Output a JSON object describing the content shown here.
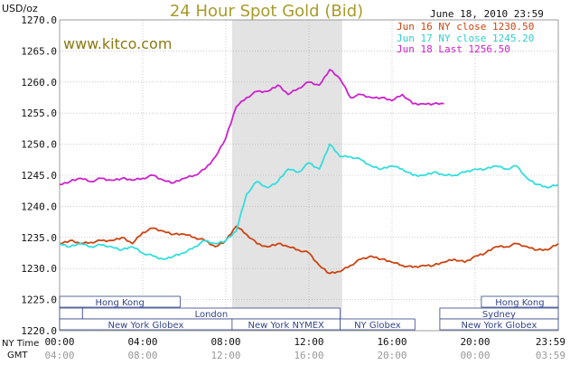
{
  "header": {
    "unit_label": "USD/oz",
    "title": "24 Hour Spot Gold (Bid)",
    "timestamp": "June 18, 2010 23:59",
    "site": "www.kitco.com"
  },
  "colors": {
    "background": "#ffffff",
    "title": "#a89a2a",
    "site": "#8a7a10",
    "jun16": "#cc4411",
    "jun17": "#33dddd",
    "jun18": "#cc22cc",
    "shade": "#e3e3e3",
    "grid": "#aaaaaa",
    "session_box": "#334488",
    "axis_text": "#111111",
    "gmt_text": "#999999"
  },
  "chart_data": {
    "type": "line",
    "title": "24 Hour Spot Gold (Bid)",
    "ylabel": "USD/oz",
    "ylim": [
      1220,
      1270
    ],
    "yticks": [
      "1220.0",
      "1225.0",
      "1230.0",
      "1235.0",
      "1240.0",
      "1245.0",
      "1250.0",
      "1255.0",
      "1260.0",
      "1265.0",
      "1270.0"
    ],
    "x_hours": [
      0,
      24
    ],
    "xticks_ny": [
      "00:00",
      "04:00",
      "08:00",
      "12:00",
      "16:00",
      "20:00",
      "23:59"
    ],
    "xticks_gmt": [
      "04:00",
      "08:00",
      "12:00",
      "16:00",
      "20:00",
      "00:00",
      "03:59"
    ],
    "xrow_labels": [
      "NY Time",
      "GMT"
    ],
    "shaded_range_hours": [
      8.3,
      13.6
    ],
    "grid": true,
    "legend_position": "top-right",
    "legend": [
      {
        "text": "Jun 16 NY close 1230.50",
        "series": "jun16"
      },
      {
        "text": "Jun 17 NY close 1245.20",
        "series": "jun17"
      },
      {
        "text": "Jun 18 Last 1256.50",
        "series": "jun18"
      }
    ],
    "series": [
      {
        "key": "jun16",
        "x": [
          0,
          0.5,
          1,
          1.5,
          2,
          2.5,
          3,
          3.5,
          4,
          4.5,
          5,
          5.5,
          6,
          6.5,
          7,
          7.5,
          8,
          8.5,
          9,
          9.5,
          10,
          10.5,
          11,
          11.5,
          12,
          12.5,
          13,
          13.5,
          14,
          14.5,
          15,
          15.5,
          16,
          16.5,
          17,
          17.5,
          18,
          18.5,
          19,
          19.5,
          20,
          20.5,
          21,
          21.5,
          22,
          22.5,
          23,
          23.5,
          24
        ],
        "values": [
          1234,
          1234.5,
          1234,
          1234.2,
          1234.5,
          1234.5,
          1235,
          1234,
          1235.8,
          1236.5,
          1236,
          1235.5,
          1235.5,
          1235,
          1234.5,
          1233.5,
          1234.5,
          1236.8,
          1235.5,
          1234,
          1233.5,
          1234,
          1233.5,
          1233,
          1232.5,
          1230.5,
          1229.2,
          1229.5,
          1230.5,
          1231.5,
          1232,
          1231.5,
          1231,
          1230.5,
          1230.2,
          1230.5,
          1230.5,
          1231,
          1231.5,
          1231,
          1232,
          1232.5,
          1233.5,
          1233.5,
          1234,
          1233.5,
          1233,
          1233,
          1234
        ]
      },
      {
        "key": "jun17",
        "x": [
          0,
          0.5,
          1,
          1.5,
          2,
          2.5,
          3,
          3.5,
          4,
          4.5,
          5,
          5.5,
          6,
          6.5,
          7,
          7.5,
          8,
          8.5,
          9,
          9.5,
          10,
          10.5,
          11,
          11.5,
          12,
          12.5,
          13,
          13.5,
          14,
          14.5,
          15,
          15.5,
          16,
          16.5,
          17,
          17.5,
          18,
          18.5,
          19,
          19.5,
          20,
          20.5,
          21,
          21.5,
          22,
          22.5,
          23,
          23.5,
          24
        ],
        "values": [
          1234,
          1233.5,
          1234,
          1233.5,
          1233.8,
          1233.5,
          1233,
          1233.5,
          1232.5,
          1232,
          1231.5,
          1232,
          1232.5,
          1233.5,
          1234.5,
          1234,
          1234.5,
          1236,
          1242,
          1244,
          1243,
          1244,
          1246,
          1245.5,
          1247,
          1246,
          1250,
          1248,
          1248,
          1247.5,
          1246.5,
          1246,
          1246.5,
          1246,
          1245,
          1245,
          1245.5,
          1245,
          1245,
          1245.5,
          1246,
          1246,
          1246.5,
          1246,
          1246.5,
          1244.5,
          1243.5,
          1243,
          1243.5
        ]
      },
      {
        "key": "jun18",
        "x": [
          0,
          0.5,
          1,
          1.5,
          2,
          2.5,
          3,
          3.5,
          4,
          4.5,
          5,
          5.5,
          6,
          6.5,
          7,
          7.5,
          8,
          8.5,
          9,
          9.5,
          10,
          10.5,
          11,
          11.5,
          12,
          12.5,
          13,
          13.5,
          14,
          14.5,
          15,
          15.5,
          16,
          16.5,
          17,
          17.5,
          18,
          18.5
        ],
        "values": [
          1243.5,
          1244,
          1244.5,
          1244,
          1244.5,
          1244.2,
          1244.5,
          1244.2,
          1244.5,
          1245,
          1244.2,
          1243.8,
          1244.5,
          1245,
          1246,
          1248,
          1251,
          1256,
          1257.5,
          1258.5,
          1258.5,
          1259.5,
          1258,
          1259,
          1260,
          1259.5,
          1262,
          1260.5,
          1257.5,
          1258,
          1257.5,
          1257.5,
          1257,
          1258,
          1256.5,
          1256.5,
          1256.5,
          1256.5
        ]
      }
    ],
    "sessions": [
      {
        "name": "Hong Kong",
        "row": 0,
        "segments": [
          [
            -1.5,
            5.8
          ]
        ]
      },
      {
        "name": "Hong Kong",
        "row": 0,
        "segments": [
          [
            20.3,
            24
          ]
        ]
      },
      {
        "name": "London",
        "row": 1,
        "segments": [
          [
            0,
            1.1
          ],
          [
            1.1,
            13.5
          ]
        ]
      },
      {
        "name": "Sydney",
        "row": 1,
        "segments": [
          [
            18.3,
            24
          ]
        ]
      },
      {
        "name": "New York Globex",
        "row": 2,
        "segments": [
          [
            0,
            8.3
          ]
        ]
      },
      {
        "name": "New York NYMEX",
        "row": 2,
        "segments": [
          [
            8.3,
            13.5
          ]
        ]
      },
      {
        "name": "NY Globex",
        "row": 2,
        "segments": [
          [
            13.5,
            17.1
          ]
        ]
      },
      {
        "name": "New York Globex",
        "row": 2,
        "segments": [
          [
            18.3,
            24
          ]
        ]
      }
    ]
  }
}
